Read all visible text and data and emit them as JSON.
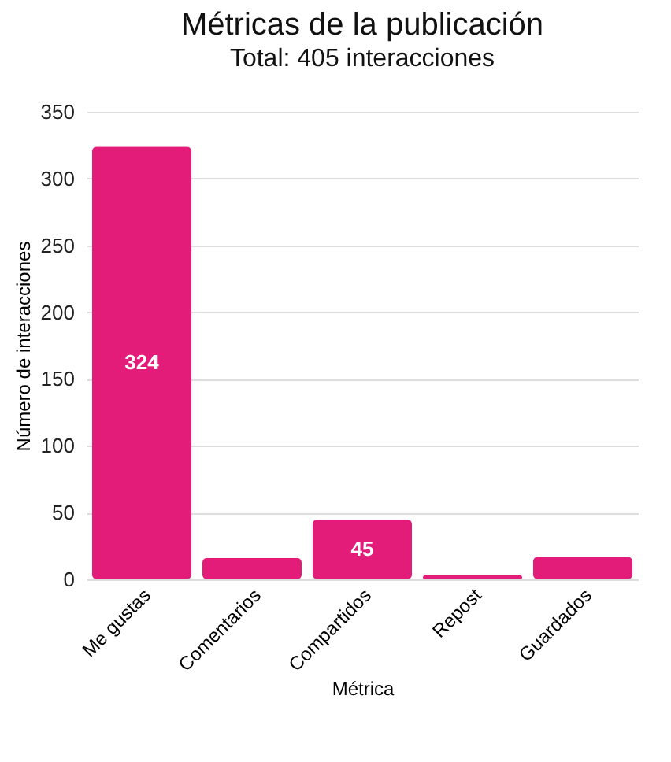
{
  "chart_data": {
    "type": "bar",
    "title": "Métricas de la publicación",
    "subtitle": "Total: 405 interacciones",
    "xlabel": "Métrica",
    "ylabel": "Número de interacciones",
    "categories": [
      "Me gustas",
      "Comentarios",
      "Compartidos",
      "Repost",
      "Guardados"
    ],
    "values": [
      324,
      16,
      45,
      3,
      17
    ],
    "color": "#e31c79",
    "value_labels": [
      "324",
      null,
      "45",
      null,
      null
    ],
    "ylim": [
      0,
      350
    ],
    "yticks": [
      0,
      50,
      100,
      150,
      200,
      250,
      300,
      350
    ],
    "grid": "y"
  }
}
